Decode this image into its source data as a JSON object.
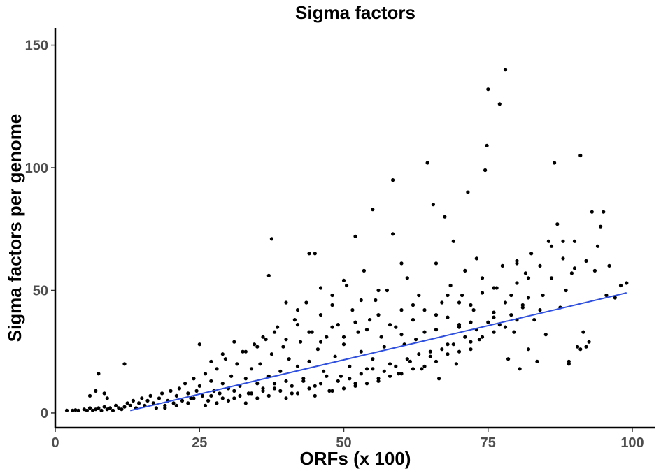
{
  "chart_data": {
    "type": "scatter",
    "title": "Sigma factors",
    "xlabel": "ORFs (x 100)",
    "ylabel": "Sigma factors per genome",
    "xlim": [
      0,
      104
    ],
    "ylim": [
      -6,
      157
    ],
    "xticks": [
      0,
      25,
      50,
      75,
      100
    ],
    "yticks": [
      0,
      50,
      100,
      150
    ],
    "grid": false,
    "point_color": "#000000",
    "trendline_color": "#2e4fe0",
    "trendline": {
      "x": [
        13,
        99
      ],
      "y": [
        1,
        49
      ]
    },
    "points": [
      [
        2,
        1
      ],
      [
        3,
        1
      ],
      [
        3.5,
        1.2
      ],
      [
        4,
        1
      ],
      [
        5,
        1.5
      ],
      [
        5.5,
        1
      ],
      [
        6,
        2
      ],
      [
        6.5,
        1
      ],
      [
        7,
        1.5
      ],
      [
        7.5,
        2
      ],
      [
        8,
        1
      ],
      [
        8.5,
        2.5
      ],
      [
        9,
        1.5
      ],
      [
        9.5,
        2
      ],
      [
        10,
        1
      ],
      [
        10.5,
        3
      ],
      [
        11,
        2
      ],
      [
        11.5,
        1.5
      ],
      [
        12,
        2.5
      ],
      [
        12.5,
        4
      ],
      [
        7.5,
        16
      ],
      [
        12,
        20
      ],
      [
        7,
        9
      ],
      [
        8.5,
        8
      ],
      [
        6,
        7
      ],
      [
        9,
        6
      ],
      [
        13,
        3
      ],
      [
        13.5,
        5
      ],
      [
        14,
        2
      ],
      [
        14.5,
        4
      ],
      [
        15,
        6
      ],
      [
        15.5,
        3
      ],
      [
        16,
        5
      ],
      [
        16.5,
        7
      ],
      [
        17,
        4
      ],
      [
        17.5,
        2
      ],
      [
        18,
        6
      ],
      [
        18.5,
        8
      ],
      [
        19,
        3
      ],
      [
        19.5,
        5
      ],
      [
        20,
        9
      ],
      [
        20.5,
        4
      ],
      [
        21,
        7
      ],
      [
        21.5,
        10
      ],
      [
        22,
        5
      ],
      [
        22.5,
        12
      ],
      [
        23,
        8
      ],
      [
        23.5,
        6
      ],
      [
        24,
        14
      ],
      [
        24.5,
        9
      ],
      [
        25,
        11
      ],
      [
        25.5,
        7
      ],
      [
        26,
        16
      ],
      [
        26.5,
        5
      ],
      [
        27,
        13
      ],
      [
        27.5,
        9
      ],
      [
        28,
        18
      ],
      [
        28.5,
        8
      ],
      [
        29,
        12
      ],
      [
        29.5,
        22
      ],
      [
        30,
        10
      ],
      [
        30.5,
        15
      ],
      [
        31,
        6
      ],
      [
        31.5,
        20
      ],
      [
        32,
        11
      ],
      [
        32.5,
        25
      ],
      [
        33,
        14
      ],
      [
        33.5,
        8
      ],
      [
        34,
        18
      ],
      [
        34.5,
        28
      ],
      [
        35,
        12
      ],
      [
        35.5,
        20
      ],
      [
        36,
        9
      ],
      [
        36.5,
        30
      ],
      [
        37,
        15
      ],
      [
        37.5,
        24
      ],
      [
        38,
        10
      ],
      [
        38.5,
        35
      ],
      [
        39,
        17
      ],
      [
        39.5,
        27
      ],
      [
        40,
        13
      ],
      [
        40.5,
        22
      ],
      [
        41,
        8
      ],
      [
        41.5,
        38
      ],
      [
        42,
        19
      ],
      [
        42.5,
        29
      ],
      [
        43,
        14
      ],
      [
        43.5,
        45
      ],
      [
        44,
        21
      ],
      [
        44.5,
        33
      ],
      [
        45,
        11
      ],
      [
        45.5,
        26
      ],
      [
        46,
        40
      ],
      [
        46.5,
        17
      ],
      [
        47,
        31
      ],
      [
        47.5,
        9
      ],
      [
        48,
        48
      ],
      [
        48.5,
        23
      ],
      [
        49,
        36
      ],
      [
        49.5,
        15
      ],
      [
        50,
        28
      ],
      [
        50.5,
        52
      ],
      [
        51,
        19
      ],
      [
        51.5,
        42
      ],
      [
        52,
        12
      ],
      [
        52.5,
        33
      ],
      [
        53,
        25
      ],
      [
        53.5,
        58
      ],
      [
        54,
        18
      ],
      [
        54.5,
        38
      ],
      [
        55,
        22
      ],
      [
        55.5,
        46
      ],
      [
        56,
        14
      ],
      [
        56.5,
        31
      ],
      [
        57,
        27
      ],
      [
        57.5,
        50
      ],
      [
        58,
        20
      ],
      [
        58.5,
        73
      ],
      [
        59,
        35
      ],
      [
        59.5,
        16
      ],
      [
        60,
        42
      ],
      [
        60.5,
        28
      ],
      [
        61,
        55
      ],
      [
        61.5,
        21
      ],
      [
        62,
        38
      ],
      [
        62.5,
        30
      ],
      [
        63,
        48
      ],
      [
        63.5,
        18
      ],
      [
        64,
        33
      ],
      [
        64.5,
        102
      ],
      [
        65,
        25
      ],
      [
        65.5,
        85
      ],
      [
        66,
        40
      ],
      [
        66.5,
        14
      ],
      [
        67,
        45
      ],
      [
        67.5,
        80
      ],
      [
        68,
        28
      ],
      [
        68.5,
        52
      ],
      [
        69,
        70
      ],
      [
        69.5,
        20
      ],
      [
        70,
        36
      ],
      [
        70.5,
        48
      ],
      [
        71,
        58
      ],
      [
        71.5,
        90
      ],
      [
        72,
        26
      ],
      [
        72.5,
        42
      ],
      [
        73,
        63
      ],
      [
        73.5,
        30
      ],
      [
        74,
        55
      ],
      [
        74.5,
        99
      ],
      [
        74.8,
        109
      ],
      [
        75,
        132
      ],
      [
        76,
        39
      ],
      [
        76.5,
        51
      ],
      [
        77,
        126
      ],
      [
        77.5,
        60
      ],
      [
        78,
        140
      ],
      [
        78.5,
        22
      ],
      [
        79,
        48
      ],
      [
        79.5,
        33
      ],
      [
        80,
        62
      ],
      [
        80.5,
        18
      ],
      [
        81,
        44
      ],
      [
        81.5,
        57
      ],
      [
        82,
        26
      ],
      [
        82.5,
        65
      ],
      [
        83,
        38
      ],
      [
        83.5,
        21
      ],
      [
        84,
        60
      ],
      [
        84.5,
        48
      ],
      [
        85,
        32
      ],
      [
        85.5,
        70
      ],
      [
        86,
        55
      ],
      [
        86.5,
        102
      ],
      [
        87,
        77
      ],
      [
        87.5,
        43
      ],
      [
        88,
        63
      ],
      [
        88.5,
        50
      ],
      [
        89,
        20
      ],
      [
        89.5,
        57
      ],
      [
        90,
        70
      ],
      [
        90.5,
        27
      ],
      [
        91,
        105
      ],
      [
        91.5,
        33
      ],
      [
        92,
        62
      ],
      [
        92.5,
        29
      ],
      [
        93,
        82
      ],
      [
        93.5,
        58
      ],
      [
        94,
        68
      ],
      [
        94.5,
        76
      ],
      [
        95,
        82
      ],
      [
        95.5,
        48
      ],
      [
        96,
        60
      ],
      [
        97,
        47
      ],
      [
        98,
        52
      ],
      [
        99,
        53
      ],
      [
        19,
        2
      ],
      [
        21,
        3
      ],
      [
        23,
        4
      ],
      [
        24,
        6
      ],
      [
        26,
        3
      ],
      [
        27,
        7
      ],
      [
        28,
        4
      ],
      [
        29,
        6
      ],
      [
        30,
        5
      ],
      [
        31,
        9
      ],
      [
        32,
        7
      ],
      [
        33,
        4
      ],
      [
        34,
        8
      ],
      [
        35,
        6
      ],
      [
        36,
        10
      ],
      [
        37,
        7
      ],
      [
        38,
        12
      ],
      [
        39,
        9
      ],
      [
        40,
        6
      ],
      [
        41,
        11
      ],
      [
        42,
        8
      ],
      [
        43,
        13
      ],
      [
        44,
        10
      ],
      [
        45,
        7
      ],
      [
        46,
        12
      ],
      [
        47,
        15
      ],
      [
        48,
        9
      ],
      [
        49,
        13
      ],
      [
        50,
        10
      ],
      [
        51,
        14
      ],
      [
        52,
        11
      ],
      [
        53,
        16
      ],
      [
        54,
        12
      ],
      [
        55,
        18
      ],
      [
        56,
        13
      ],
      [
        57,
        17
      ],
      [
        58,
        15
      ],
      [
        59,
        19
      ],
      [
        60,
        16
      ],
      [
        61,
        22
      ],
      [
        62,
        18
      ],
      [
        63,
        24
      ],
      [
        64,
        19
      ],
      [
        65,
        23
      ],
      [
        66,
        21
      ],
      [
        67,
        26
      ],
      [
        68,
        24
      ],
      [
        69,
        28
      ],
      [
        70,
        25
      ],
      [
        71,
        31
      ],
      [
        72,
        29
      ],
      [
        73,
        34
      ],
      [
        74,
        31
      ],
      [
        75,
        37
      ],
      [
        76,
        33
      ],
      [
        77,
        36
      ],
      [
        78,
        35
      ],
      [
        79,
        40
      ],
      [
        80,
        38
      ],
      [
        81,
        43
      ],
      [
        37.5,
        71
      ],
      [
        37,
        56
      ],
      [
        44,
        65
      ],
      [
        45,
        65
      ],
      [
        52,
        72
      ],
      [
        55,
        83
      ],
      [
        58.5,
        95
      ],
      [
        40,
        45
      ],
      [
        42,
        42
      ],
      [
        46,
        51
      ],
      [
        48,
        44
      ],
      [
        50,
        54
      ],
      [
        53,
        46
      ],
      [
        56,
        50
      ],
      [
        60,
        61
      ],
      [
        62,
        44
      ],
      [
        66,
        61
      ],
      [
        68,
        48
      ],
      [
        70,
        35
      ],
      [
        72,
        44
      ],
      [
        76,
        51
      ],
      [
        80,
        61
      ],
      [
        82,
        55
      ],
      [
        84,
        42
      ],
      [
        86,
        68
      ],
      [
        88,
        70
      ],
      [
        90,
        59
      ],
      [
        92,
        27
      ],
      [
        89,
        21
      ],
      [
        91,
        26
      ],
      [
        33,
        25
      ],
      [
        35,
        27
      ],
      [
        31,
        29
      ],
      [
        29,
        24
      ],
      [
        27,
        21
      ],
      [
        25,
        28
      ],
      [
        36,
        31
      ],
      [
        38,
        33
      ],
      [
        40,
        30
      ],
      [
        42,
        36
      ],
      [
        44,
        33
      ],
      [
        46,
        29
      ],
      [
        48,
        35
      ],
      [
        50,
        31
      ],
      [
        52,
        37
      ],
      [
        54,
        34
      ],
      [
        56,
        40
      ],
      [
        58,
        36
      ],
      [
        60,
        32
      ],
      [
        62,
        38
      ],
      [
        64,
        42
      ],
      [
        66,
        34
      ],
      [
        68,
        39
      ],
      [
        70,
        45
      ],
      [
        72,
        37
      ],
      [
        74,
        49
      ],
      [
        76,
        41
      ],
      [
        78,
        45
      ],
      [
        80,
        53
      ],
      [
        82,
        47
      ]
    ]
  }
}
